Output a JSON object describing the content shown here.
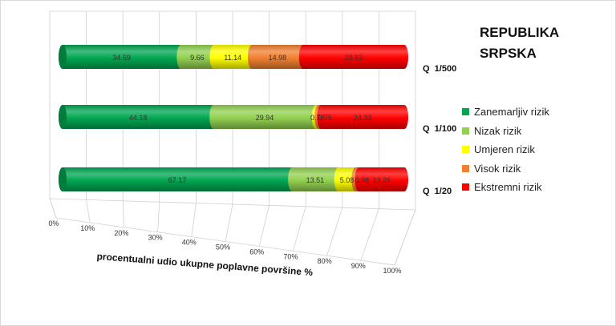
{
  "chart_data": {
    "type": "bar",
    "orientation": "horizontal",
    "stacked": "percent",
    "title": "REPUBLIKA SRPSKA",
    "xlabel": "procentualni udio ukupne poplavne površine %",
    "ylabel": "",
    "xlim": [
      0,
      100
    ],
    "x_ticks": [
      "0%",
      "10%",
      "20%",
      "30%",
      "40%",
      "50%",
      "60%",
      "70%",
      "80%",
      "90%",
      "100%"
    ],
    "categories": [
      "Q  1/500",
      "Q  1/100",
      "Q  1/20"
    ],
    "series": [
      {
        "name": "Zanemarljiv rizik",
        "color": "#00a651",
        "values": [
          34.59,
          44.18,
          67.17
        ],
        "labels": [
          "34.59",
          "44.18",
          "67.17"
        ]
      },
      {
        "name": "Nizak rizik",
        "color": "#92d050",
        "values": [
          9.66,
          29.94,
          13.51
        ],
        "labels": [
          "9.66",
          "29.94",
          "13.51"
        ]
      },
      {
        "name": "Umjeren rizik",
        "color": "#ffff00",
        "values": [
          11.14,
          0.78,
          5.08
        ],
        "labels": [
          "11.14",
          "0.78",
          "5.08"
        ]
      },
      {
        "name": "Visok rizik",
        "color": "#f08030",
        "values": [
          14.98,
          0.75,
          0.98
        ],
        "labels": [
          "14.98",
          "0.75",
          "0.98"
        ]
      },
      {
        "name": "Ekstremni rizik",
        "color": "#ff0000",
        "values": [
          29.63,
          24.33,
          13.26
        ],
        "labels": [
          "29.63",
          "24.33",
          "13.26"
        ]
      }
    ],
    "grid": true,
    "legend_position": "right",
    "perspective": "3d-cylinder"
  }
}
